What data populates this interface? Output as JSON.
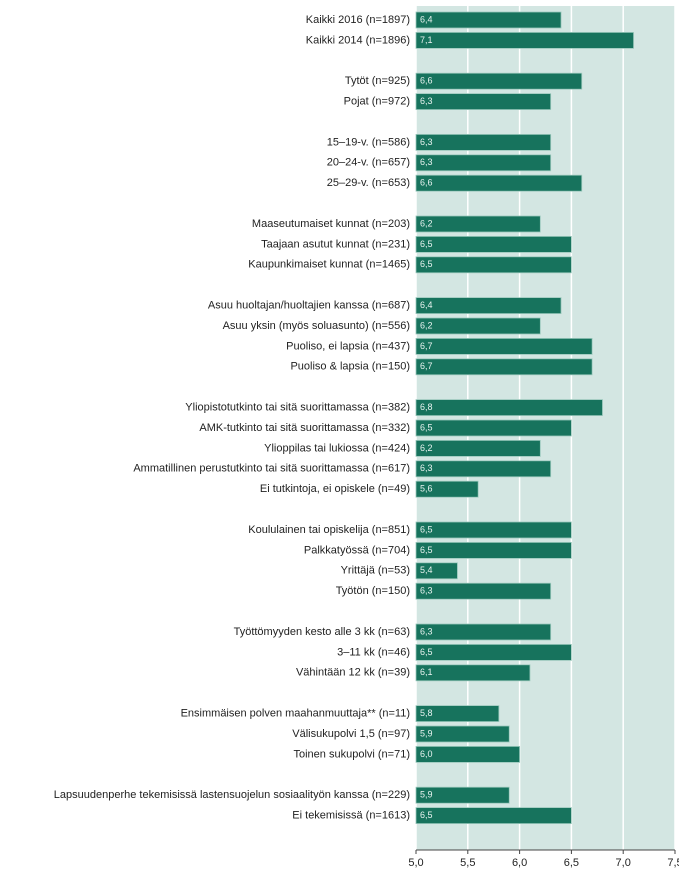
{
  "chart_data": {
    "type": "bar",
    "orientation": "horizontal",
    "color": "#17735d",
    "background": "#d3e6e2",
    "grid": true,
    "categories": [
      "Kaikki 2016 (n=1897)",
      "Kaikki 2014 (n=1896)",
      null,
      "Tytöt (n=925)",
      "Pojat (n=972)",
      null,
      "15–19-v. (n=586)",
      "20–24-v. (n=657)",
      "25–29-v. (n=653)",
      null,
      "Maaseutumaiset kunnat (n=203)",
      "Taajaan asutut kunnat (n=231)",
      "Kaupunkimaiset kunnat (n=1465)",
      null,
      "Asuu huoltajan/huoltajien kanssa (n=687)",
      "Asuu yksin (myös soluasunto) (n=556)",
      "Puoliso, ei lapsia (n=437)",
      "Puoliso & lapsia (n=150)",
      null,
      "Yliopistotutkinto tai sitä suorittamassa (n=382)",
      "AMK-tutkinto tai sitä suorittamassa (n=332)",
      "Ylioppilas tai lukiossa (n=424)",
      "Ammatillinen perustutkinto tai sitä suorittamassa (n=617)",
      "Ei tutkintoja, ei opiskele (n=49)",
      null,
      "Koululainen tai opiskelija (n=851)",
      "Palkkatyössä (n=704)",
      "Yrittäjä (n=53)",
      "Työtön (n=150)",
      null,
      "Työttömyyden kesto alle 3 kk (n=63)",
      "3–11 kk (n=46)",
      "Vähintään 12 kk (n=39)",
      null,
      "Ensimmäisen polven maahanmuuttaja** (n=11)",
      "Välisukupolvi 1,5 (n=97)",
      "Toinen sukupolvi (n=71)",
      null,
      "Lapsuudenperhe tekemisissä lastensuojelun sosiaalityön kanssa (n=229)",
      "Ei tekemisissä (n=1613)"
    ],
    "values": [
      6.4,
      7.1,
      null,
      6.6,
      6.3,
      null,
      6.3,
      6.3,
      6.6,
      null,
      6.2,
      6.5,
      6.5,
      null,
      6.4,
      6.2,
      6.7,
      6.7,
      null,
      6.8,
      6.5,
      6.2,
      6.3,
      5.6,
      null,
      6.5,
      6.5,
      5.4,
      6.3,
      null,
      6.3,
      6.5,
      6.1,
      null,
      5.8,
      5.9,
      6.0,
      null,
      5.9,
      6.5
    ],
    "value_labels": [
      "6,4",
      "7,1",
      null,
      "6,6",
      "6,3",
      null,
      "6,3",
      "6,3",
      "6,6",
      null,
      "6,2",
      "6,5",
      "6,5",
      null,
      "6,4",
      "6,2",
      "6,7",
      "6,7",
      null,
      "6,8",
      "6,5",
      "6,2",
      "6,3",
      "5,6",
      null,
      "6,5",
      "6,5",
      "5,4",
      "6,3",
      null,
      "6,3",
      "6,5",
      "6,1",
      null,
      "5,8",
      "5,9",
      "6,0",
      null,
      "5,9",
      "6,5"
    ],
    "xlim": [
      5.0,
      7.5
    ],
    "xticks": [
      {
        "value": 5.0,
        "label": "5,0"
      },
      {
        "value": 5.5,
        "label": "5,5"
      },
      {
        "value": 6.0,
        "label": "6,0"
      },
      {
        "value": 6.5,
        "label": "6,5"
      },
      {
        "value": 7.0,
        "label": "7,0"
      },
      {
        "value": 7.5,
        "label": "7,5"
      }
    ]
  }
}
